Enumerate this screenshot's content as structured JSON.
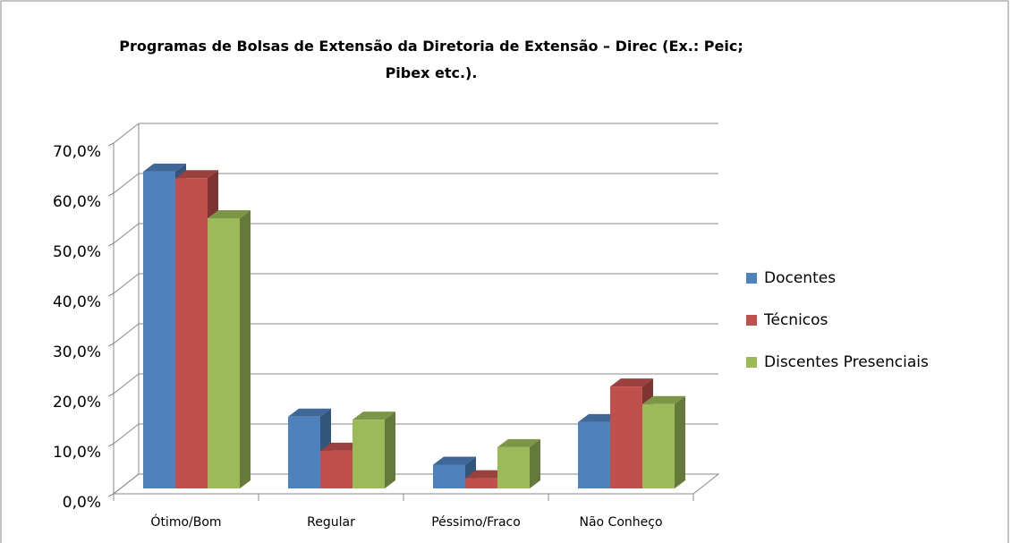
{
  "chart_data": {
    "type": "bar3d",
    "title": "Programas de Bolsas de Extensão da Diretoria de Extensão – Direc (Ex.: Peic; Pibex etc.).",
    "categories": [
      "Ótimo/Bom",
      "Regular",
      "Péssimo/Fraco",
      "Não Conheço"
    ],
    "series": [
      {
        "name": "Docentes",
        "color": "#4f81bd",
        "values": [
          64.3,
          15.4,
          5.8,
          14.3
        ]
      },
      {
        "name": "Técnicos",
        "color": "#c0504d",
        "values": [
          63.0,
          8.6,
          3.1,
          21.4
        ]
      },
      {
        "name": "Discentes Presenciais",
        "color": "#9bbb59",
        "values": [
          55.0,
          14.8,
          9.3,
          17.9
        ]
      }
    ],
    "ylim": [
      0,
      70
    ],
    "yticks": [
      {
        "value": 0,
        "label": "0,0%"
      },
      {
        "value": 10,
        "label": "10,0%"
      },
      {
        "value": 20,
        "label": "20,0%"
      },
      {
        "value": 30,
        "label": "30,0%"
      },
      {
        "value": 40,
        "label": "40,0%"
      },
      {
        "value": 50,
        "label": "50,0%"
      },
      {
        "value": 60,
        "label": "60,0%"
      },
      {
        "value": 70,
        "label": "70,0%"
      }
    ],
    "grid": true,
    "legend": "right"
  }
}
